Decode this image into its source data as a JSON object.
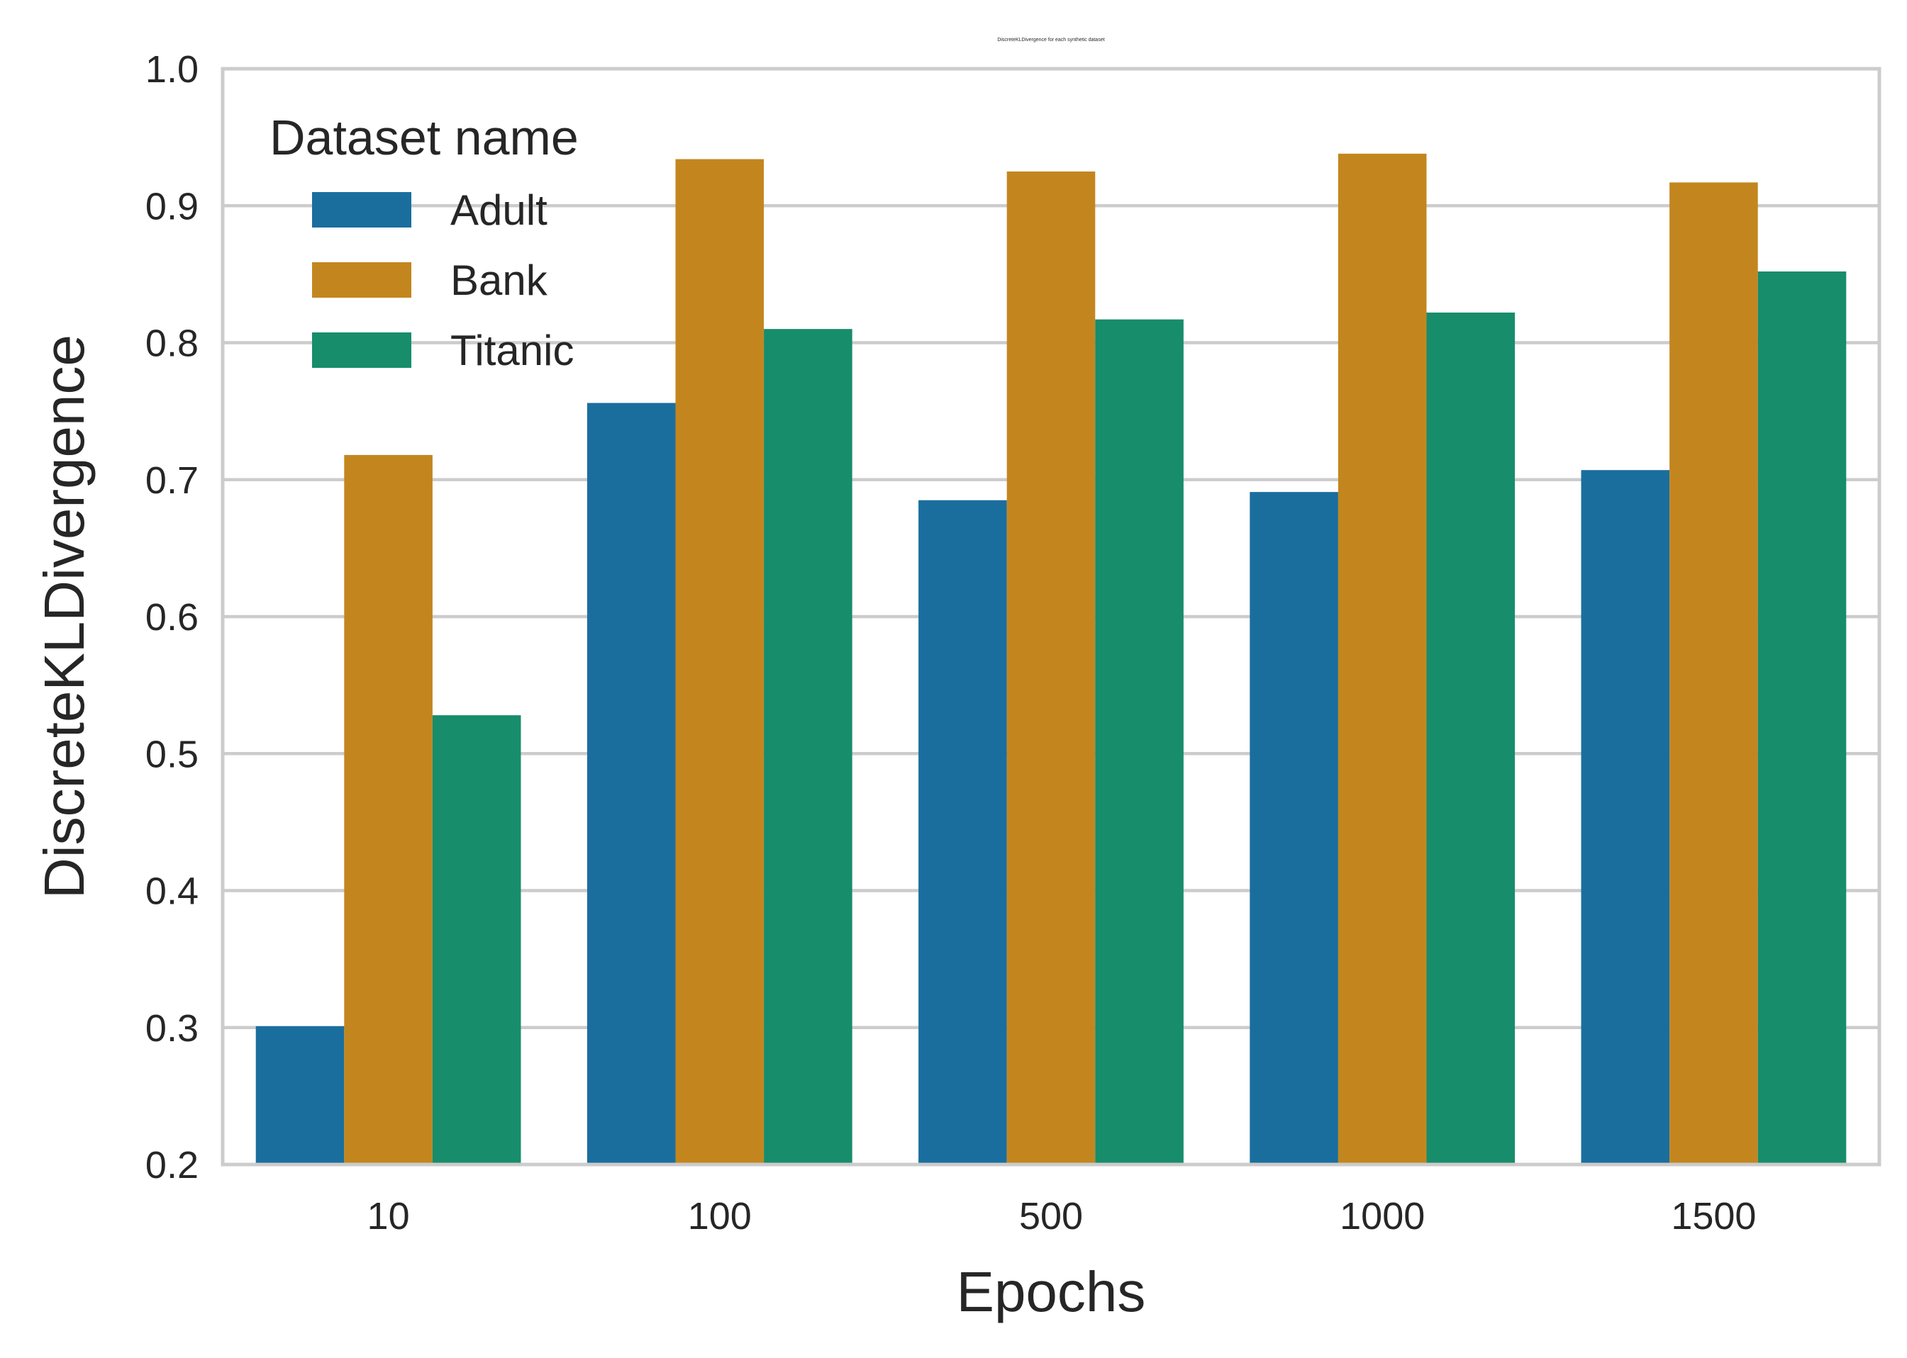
{
  "chart_data": {
    "type": "bar",
    "title": "DiscreteKLDivergence for each synthetic dataset",
    "xlabel": "Epochs",
    "ylabel": "DiscreteKLDivergence",
    "categories": [
      "10",
      "100",
      "500",
      "1000",
      "1500"
    ],
    "ylim": [
      0.2,
      1.0
    ],
    "yticks": [
      "0.2",
      "0.3",
      "0.4",
      "0.5",
      "0.6",
      "0.7",
      "0.8",
      "0.9",
      "1.0"
    ],
    "grid": "horizontal",
    "legend": {
      "title": "Dataset name",
      "placement": "upper-left"
    },
    "series": [
      {
        "name": "Adult",
        "color": "#1a6e9e",
        "values": [
          0.301,
          0.756,
          0.685,
          0.691,
          0.707
        ]
      },
      {
        "name": "Bank",
        "color": "#c3861f",
        "values": [
          0.718,
          0.934,
          0.925,
          0.938,
          0.917
        ]
      },
      {
        "name": "Titanic",
        "color": "#178d6b",
        "values": [
          0.528,
          0.81,
          0.817,
          0.822,
          0.852
        ]
      }
    ]
  }
}
